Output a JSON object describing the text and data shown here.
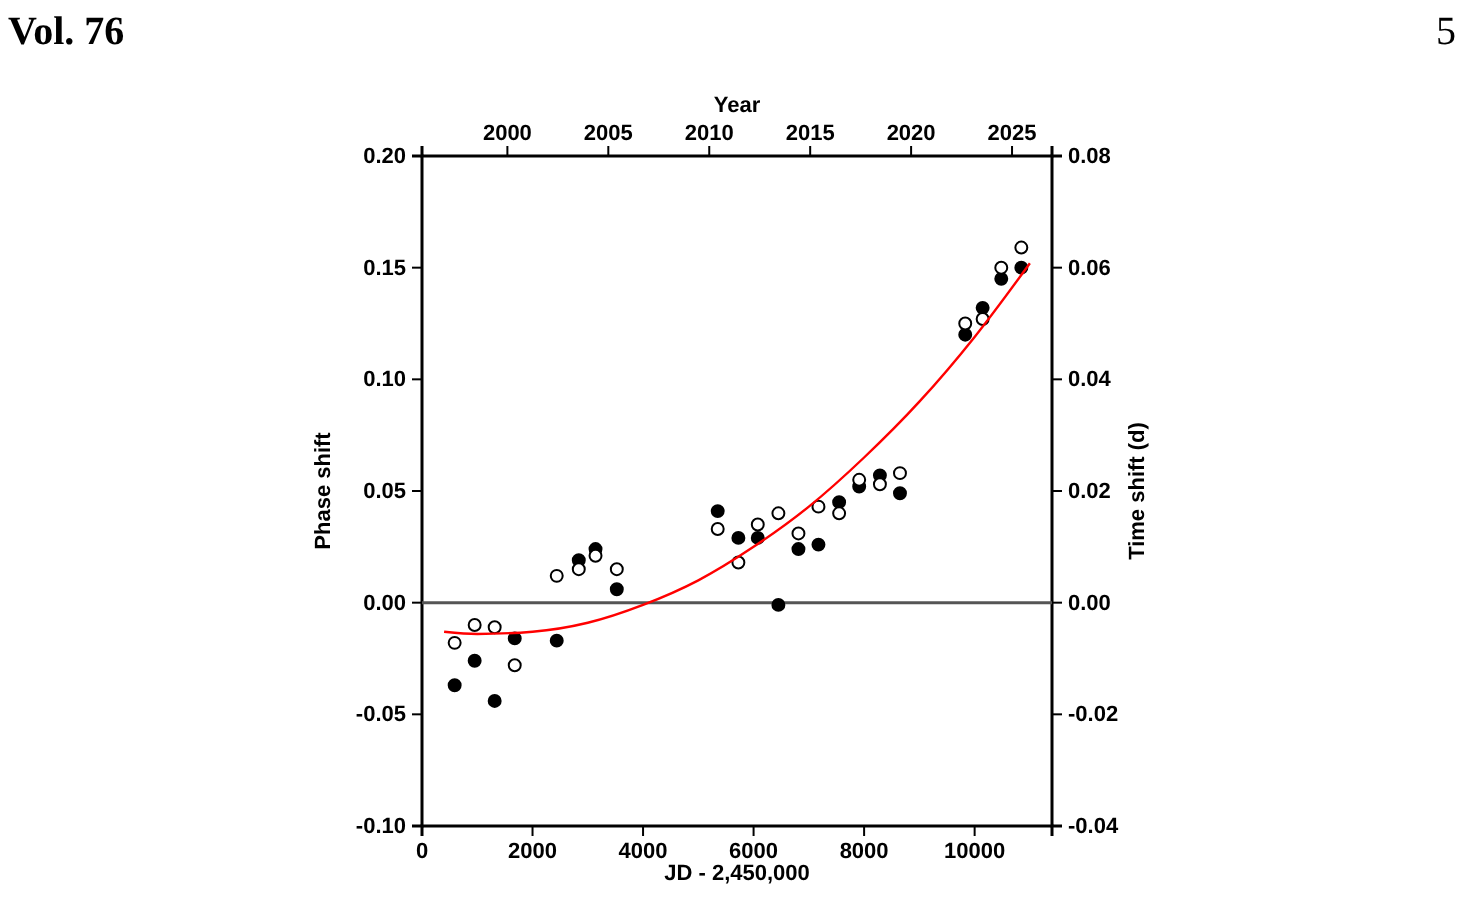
{
  "chart_data": {
    "type": "scatter",
    "xlabel": "JD - 2,450,000",
    "ylabel": "Phase shift",
    "y2label": "Time shift (d)",
    "x2label": "Year",
    "annotations": [
      "Vol. 76",
      "5"
    ],
    "xlim": [
      0,
      11400
    ],
    "xticks": [
      0,
      2000,
      4000,
      6000,
      8000,
      10000
    ],
    "x2lim": [
      1995.77,
      2026.98
    ],
    "x2ticks": [
      2000,
      2005,
      2010,
      2015,
      2020,
      2025
    ],
    "ylim": [
      -0.1,
      0.2
    ],
    "yticks": [
      {
        "value": -0.1,
        "label": "-0.10"
      },
      {
        "value": -0.05,
        "label": "-0.05"
      },
      {
        "value": 0,
        "label": "0.00"
      },
      {
        "value": 0.05,
        "label": "0.05"
      },
      {
        "value": 0.1,
        "label": "0.10"
      },
      {
        "value": 0.15,
        "label": "0.15"
      },
      {
        "value": 0.2,
        "label": "0.20"
      }
    ],
    "y2lim": [
      -0.04,
      0.08
    ],
    "y2ticks": [
      {
        "value": -0.04,
        "label": "-0.04"
      },
      {
        "value": -0.02,
        "label": "-0.02"
      },
      {
        "value": 0,
        "label": "0.00"
      },
      {
        "value": 0.02,
        "label": "0.02"
      },
      {
        "value": 0.04,
        "label": "0.04"
      },
      {
        "value": 0.06,
        "label": "0.06"
      },
      {
        "value": 0.08,
        "label": "0.08"
      }
    ],
    "marker": "circle",
    "grid": false,
    "ref_lines": [
      {
        "axis": "y",
        "value": 0,
        "color": "#555555"
      }
    ],
    "series": [
      {
        "color": "#000000",
        "x": [
          591,
          953,
          1315,
          1678,
          2438,
          2837,
          3140,
          3525,
          5351,
          5725,
          6076,
          6449,
          6812,
          7174,
          7548,
          7911,
          8286,
          8649,
          9830,
          10145,
          10482,
          10845
        ],
        "values": [
          -0.037,
          -0.026,
          -0.044,
          -0.016,
          -0.017,
          0.019,
          0.024,
          0.006,
          0.041,
          0.029,
          0.029,
          -0.001,
          0.024,
          0.026,
          0.045,
          0.052,
          0.057,
          0.049,
          0.12,
          0.132,
          0.145,
          0.15
        ]
      },
      {
        "color": "#ffffff",
        "x": [
          591,
          953,
          1315,
          1678,
          2438,
          2837,
          3140,
          3525,
          5351,
          5725,
          6076,
          6449,
          6812,
          7174,
          7548,
          7911,
          8286,
          8649,
          9830,
          10145,
          10482,
          10845
        ],
        "values": [
          -0.018,
          -0.01,
          -0.011,
          -0.028,
          0.012,
          0.015,
          0.021,
          0.015,
          0.033,
          0.018,
          0.035,
          0.04,
          0.031,
          0.043,
          0.04,
          0.055,
          0.053,
          0.058,
          0.125,
          0.127,
          0.15,
          0.159
        ]
      },
      {
        "type": "line",
        "color": "#ff0000",
        "marker": "none",
        "x": [
          400,
          1000,
          2000,
          3000,
          4000,
          5000,
          6000,
          7000,
          8000,
          9000,
          10000,
          11000
        ],
        "values": [
          -0.013,
          -0.014,
          -0.013,
          -0.009,
          -0.001,
          0.01,
          0.025,
          0.043,
          0.065,
          0.09,
          0.119,
          0.152
        ]
      }
    ]
  }
}
